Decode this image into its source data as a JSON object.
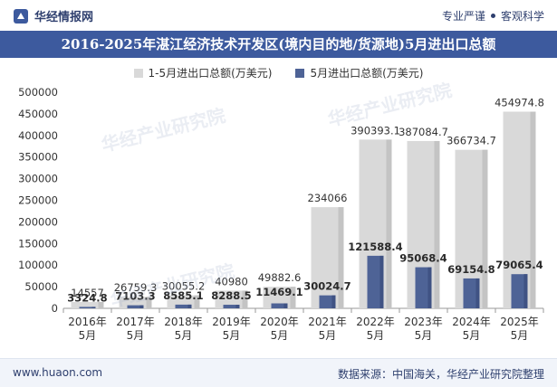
{
  "header": {
    "brand_name": "华经情报网",
    "tagline_left": "专业严谨",
    "tagline_right": "客观科学"
  },
  "title": "2016-2025年湛江经济技术开发区(境内目的地/货源地)5月进出口总额",
  "footer": {
    "website": "www.huaon.com",
    "source": "数据来源：中国海关，华经产业研究院整理"
  },
  "colors": {
    "accent": "#3d5a9e",
    "series_total": "#d9d9d9",
    "series_may": "#4e6396"
  },
  "chart_data": {
    "type": "bar",
    "categories": [
      "2016年\n5月",
      "2017年\n5月",
      "2018年\n5月",
      "2019年\n5月",
      "2020年\n5月",
      "2021年\n5月",
      "2022年\n5月",
      "2023年\n5月",
      "2024年\n5月",
      "2025年\n5月"
    ],
    "series": [
      {
        "name": "1-5月进出口总额(万美元)",
        "values": [
          14557,
          26759.3,
          30055.2,
          40980,
          49882.6,
          234066,
          390393.1,
          387084.7,
          366734.7,
          454974.8
        ],
        "labels": [
          "14557",
          "26759.3",
          "30055.2",
          "40980",
          "49882.6",
          "234066",
          "390393.1",
          "387084.7",
          "366734.7",
          "454974.8"
        ]
      },
      {
        "name": "5月进出口总额(万美元)",
        "values": [
          3324.8,
          7103.3,
          8585.1,
          8288.5,
          11469.1,
          30024.7,
          121588.4,
          95068.4,
          69154.8,
          79065.4
        ],
        "labels": [
          "3324.8",
          "7103.3",
          "8585.1",
          "8288.5",
          "11469.1",
          "30024.7",
          "121588.4",
          "95068.4",
          "69154.8",
          "79065.4"
        ]
      }
    ],
    "ylim": [
      0,
      500000
    ],
    "yticks": [
      "0",
      "50000",
      "100000",
      "150000",
      "200000",
      "250000",
      "300000",
      "350000",
      "400000",
      "450000",
      "500000"
    ],
    "grid": false,
    "legend_position": "top-center"
  }
}
